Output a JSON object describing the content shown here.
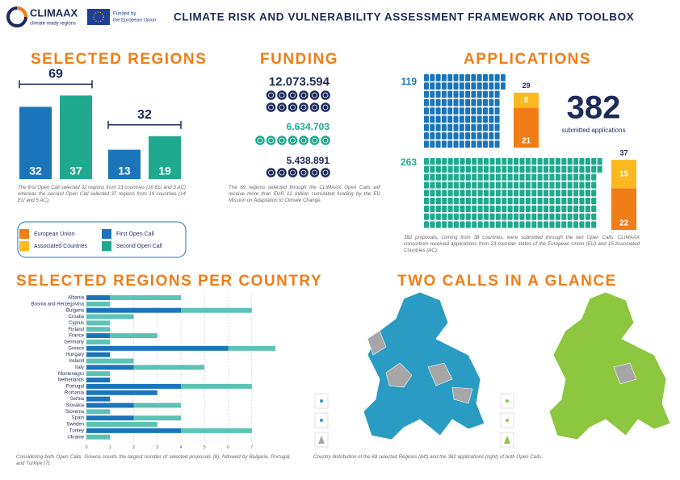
{
  "header": {
    "logo": "CLIMAAX",
    "tagline": "climate ready regions",
    "funded": "Funded by",
    "funder": "the European Union",
    "title": "CLIMATE RISK AND VULNERABILITY ASSESSMENT FRAMEWORK AND TOOLBOX"
  },
  "chart_data": [
    {
      "type": "bar",
      "title": "SELECTED REGIONS",
      "categories": [
        null,
        null
      ],
      "totals": [
        69,
        32
      ],
      "series": [
        {
          "name": "First Open Call",
          "color": "#1a75bb",
          "values": [
            32,
            13
          ]
        },
        {
          "name": "Second Open Call",
          "color": "#1fa98f",
          "values": [
            37,
            19
          ]
        }
      ],
      "caption": "The first Open Call selected 32 regions from 13 countries (10 EU and 3 AC) whereas the second Open Call selected 37 regions from 19 countries (14 EU and 5 AC)."
    },
    {
      "type": "stacked-hbar",
      "title": "SELECTED REGIONS PER COUNTRY",
      "categories": [
        "Albania",
        "Bosnia and Herzegovina",
        "Bulgaria",
        "Croatia",
        "Cyprus",
        "Finland",
        "France",
        "Germany",
        "Greece",
        "Hungary",
        "Ireland",
        "Italy",
        "Montenegro",
        "Netherlands",
        "Portugal",
        "Romania",
        "Serbia",
        "Slovakia",
        "Slovenia",
        "Spain",
        "Sweden",
        "Turkey",
        "Ukraine"
      ],
      "series": [
        {
          "name": "First Open Call",
          "color": "#1a75bb",
          "values": [
            1,
            0,
            4,
            0,
            0,
            0,
            1,
            0,
            6,
            1,
            0,
            2,
            0,
            1,
            4,
            3,
            1,
            2,
            0,
            2,
            0,
            4,
            0
          ]
        },
        {
          "name": "Second Open Call",
          "color": "#5cc2b4",
          "values": [
            3,
            1,
            3,
            2,
            1,
            1,
            2,
            1,
            2,
            0,
            2,
            3,
            1,
            0,
            3,
            0,
            0,
            2,
            1,
            2,
            3,
            3,
            1
          ]
        }
      ],
      "xlim": [
        0,
        8
      ],
      "xticks": [
        0,
        1,
        2,
        3,
        4,
        5,
        6,
        7
      ],
      "grid": true,
      "caption": "Considering both Open Calls, Greece counts the largest number of selected proposals (8), followed by Bulgaria, Portugal, and Türkiye (7)."
    }
  ],
  "funding": {
    "title": "FUNDING",
    "amounts": [
      "12.073.594",
      "6.634.703",
      "5.438.891"
    ],
    "caption": "The 69 regions selected through the CLIMAAX Open Calls will receive more than EUR 12 million cumulated funding by the EU Mission on Adaptation to Climate Change."
  },
  "applications": {
    "title": "APPLICATIONS",
    "total": 382,
    "total_label": "submitted applications",
    "series": [
      {
        "name": "European Union",
        "color": "#f07d16"
      },
      {
        "name": "Associated Countries",
        "color": "#fbb91f"
      }
    ],
    "calls": [
      {
        "applications": 119,
        "countries": 29,
        "eu": 21,
        "ac": 8,
        "color": "#1a75bb"
      },
      {
        "applications": 263,
        "countries": 37,
        "eu": 22,
        "ac": 15,
        "color": "#1fa98f"
      }
    ],
    "caption": "382 proposals, coming from 38 countries, were submitted through the two Open Calls. CLIMAAX consortium received applications from 23 member states of the European Union (EU) and 15 Associated Countries (AC)."
  },
  "maps": {
    "title": "TWO CALLS IN A GLANCE",
    "caption": "Country distribution of the 69 selected Regions (left) and the 382 applications (right) of both Open Calls."
  }
}
